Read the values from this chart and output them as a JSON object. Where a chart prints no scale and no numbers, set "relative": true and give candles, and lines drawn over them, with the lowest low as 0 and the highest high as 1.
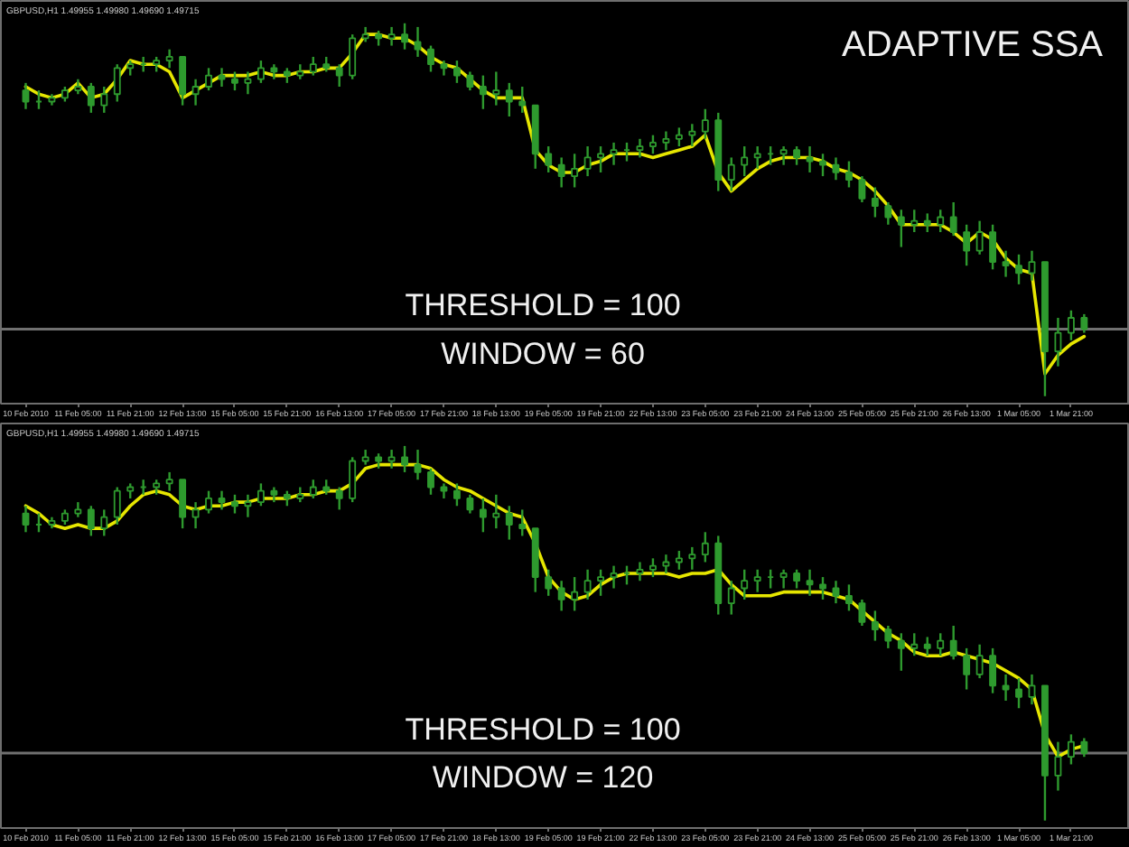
{
  "chart_data": [
    {
      "type": "candlestick",
      "title": "ADAPTIVE SSA",
      "subtitle": "GBPUSD,H1 1.49955 1.49980 1.49690 1.49715",
      "annotations": [
        "THRESHOLD = 100",
        "WINDOW = 60"
      ],
      "relative": true,
      "color": "#2e9a2e",
      "categories": [
        "10 Feb 2010",
        null,
        null,
        null,
        "11 Feb 05:00",
        null,
        null,
        null,
        "11 Feb 21:00",
        null,
        null,
        null,
        "12 Feb 13:00",
        null,
        null,
        null,
        "15 Feb 05:00",
        null,
        null,
        null,
        "15 Feb 21:00",
        null,
        null,
        null,
        "16 Feb 13:00",
        null,
        null,
        null,
        "17 Feb 05:00",
        null,
        null,
        null,
        "17 Feb 21:00",
        null,
        null,
        null,
        "18 Feb 13:00",
        null,
        null,
        null,
        "19 Feb 05:00",
        null,
        null,
        null,
        "19 Feb 21:00",
        null,
        null,
        null,
        "22 Feb 13:00",
        null,
        null,
        null,
        "23 Feb 05:00",
        null,
        null,
        null,
        "23 Feb 21:00",
        null,
        null,
        null,
        "24 Feb 13:00",
        null,
        null,
        null,
        "25 Feb 05:00",
        null,
        null,
        null,
        "25 Feb 21:00",
        null,
        null,
        null,
        "26 Feb 13:00",
        null,
        null,
        null,
        "1 Mar 05:00",
        null,
        null,
        null,
        "1 Mar 21:00",
        null
      ],
      "ohlc": [
        [
          0.82,
          0.84,
          0.77,
          0.79
        ],
        [
          0.79,
          0.82,
          0.77,
          0.79
        ],
        [
          0.79,
          0.81,
          0.78,
          0.8
        ],
        [
          0.8,
          0.83,
          0.79,
          0.82
        ],
        [
          0.82,
          0.85,
          0.81,
          0.83
        ],
        [
          0.83,
          0.84,
          0.76,
          0.78
        ],
        [
          0.78,
          0.83,
          0.76,
          0.81
        ],
        [
          0.81,
          0.89,
          0.79,
          0.88
        ],
        [
          0.88,
          0.9,
          0.86,
          0.89
        ],
        [
          0.89,
          0.91,
          0.87,
          0.89
        ],
        [
          0.89,
          0.91,
          0.87,
          0.9
        ],
        [
          0.9,
          0.93,
          0.88,
          0.91
        ],
        [
          0.91,
          0.91,
          0.78,
          0.81
        ],
        [
          0.81,
          0.85,
          0.78,
          0.83
        ],
        [
          0.83,
          0.88,
          0.82,
          0.86
        ],
        [
          0.86,
          0.88,
          0.83,
          0.85
        ],
        [
          0.85,
          0.87,
          0.82,
          0.84
        ],
        [
          0.84,
          0.87,
          0.81,
          0.85
        ],
        [
          0.85,
          0.9,
          0.84,
          0.88
        ],
        [
          0.88,
          0.89,
          0.85,
          0.87
        ],
        [
          0.87,
          0.88,
          0.84,
          0.86
        ],
        [
          0.86,
          0.89,
          0.85,
          0.87
        ],
        [
          0.87,
          0.91,
          0.86,
          0.89
        ],
        [
          0.89,
          0.91,
          0.87,
          0.88
        ],
        [
          0.88,
          0.89,
          0.83,
          0.86
        ],
        [
          0.86,
          0.97,
          0.85,
          0.96
        ],
        [
          0.96,
          0.99,
          0.95,
          0.97
        ],
        [
          0.97,
          0.98,
          0.94,
          0.96
        ],
        [
          0.96,
          0.99,
          0.94,
          0.97
        ],
        [
          0.97,
          1,
          0.93,
          0.95
        ],
        [
          0.95,
          0.99,
          0.91,
          0.93
        ],
        [
          0.93,
          0.94,
          0.87,
          0.89
        ],
        [
          0.89,
          0.9,
          0.86,
          0.88
        ],
        [
          0.88,
          0.9,
          0.84,
          0.86
        ],
        [
          0.86,
          0.87,
          0.82,
          0.83
        ],
        [
          0.83,
          0.86,
          0.77,
          0.81
        ],
        [
          0.81,
          0.87,
          0.78,
          0.82
        ],
        [
          0.82,
          0.84,
          0.75,
          0.79
        ],
        [
          0.79,
          0.83,
          0.76,
          0.78
        ],
        [
          0.78,
          0.78,
          0.61,
          0.65
        ],
        [
          0.65,
          0.67,
          0.6,
          0.62
        ],
        [
          0.62,
          0.64,
          0.56,
          0.59
        ],
        [
          0.59,
          0.65,
          0.56,
          0.61
        ],
        [
          0.61,
          0.67,
          0.59,
          0.64
        ],
        [
          0.64,
          0.67,
          0.6,
          0.65
        ],
        [
          0.65,
          0.68,
          0.62,
          0.66
        ],
        [
          0.66,
          0.68,
          0.63,
          0.66
        ],
        [
          0.66,
          0.69,
          0.64,
          0.67
        ],
        [
          0.67,
          0.7,
          0.65,
          0.68
        ],
        [
          0.68,
          0.71,
          0.66,
          0.69
        ],
        [
          0.69,
          0.72,
          0.67,
          0.7
        ],
        [
          0.7,
          0.73,
          0.67,
          0.71
        ],
        [
          0.71,
          0.77,
          0.69,
          0.74
        ],
        [
          0.74,
          0.76,
          0.55,
          0.58
        ],
        [
          0.58,
          0.64,
          0.55,
          0.62
        ],
        [
          0.62,
          0.67,
          0.59,
          0.64
        ],
        [
          0.64,
          0.67,
          0.61,
          0.65
        ],
        [
          0.65,
          0.67,
          0.62,
          0.65
        ],
        [
          0.65,
          0.67,
          0.62,
          0.66
        ],
        [
          0.66,
          0.67,
          0.62,
          0.64
        ],
        [
          0.64,
          0.67,
          0.6,
          0.63
        ],
        [
          0.63,
          0.65,
          0.59,
          0.62
        ],
        [
          0.62,
          0.64,
          0.58,
          0.6
        ],
        [
          0.6,
          0.63,
          0.56,
          0.58
        ],
        [
          0.58,
          0.59,
          0.52,
          0.53
        ],
        [
          0.53,
          0.56,
          0.48,
          0.51
        ],
        [
          0.51,
          0.52,
          0.46,
          0.48
        ],
        [
          0.48,
          0.5,
          0.4,
          0.46
        ],
        [
          0.46,
          0.5,
          0.44,
          0.47
        ],
        [
          0.47,
          0.49,
          0.44,
          0.46
        ],
        [
          0.46,
          0.5,
          0.44,
          0.48
        ],
        [
          0.48,
          0.52,
          0.43,
          0.44
        ],
        [
          0.44,
          0.46,
          0.35,
          0.39
        ],
        [
          0.39,
          0.47,
          0.38,
          0.44
        ],
        [
          0.44,
          0.46,
          0.34,
          0.36
        ],
        [
          0.36,
          0.39,
          0.32,
          0.35
        ],
        [
          0.35,
          0.38,
          0.3,
          0.33
        ],
        [
          0.33,
          0.39,
          0.31,
          0.36
        ],
        [
          0.36,
          0.36,
          0,
          0.12
        ],
        [
          0.12,
          0.21,
          0.08,
          0.17
        ],
        [
          0.17,
          0.23,
          0.15,
          0.21
        ],
        [
          0.21,
          0.22,
          0.17,
          0.18
        ]
      ],
      "series": [
        {
          "type": "line",
          "color": "#e6e600",
          "values": [
            0.83,
            0.81,
            0.8,
            0.81,
            0.84,
            0.8,
            0.81,
            0.85,
            0.9,
            0.89,
            0.89,
            0.87,
            0.8,
            0.82,
            0.84,
            0.86,
            0.86,
            0.86,
            0.87,
            0.86,
            0.86,
            0.87,
            0.87,
            0.88,
            0.88,
            0.92,
            0.97,
            0.97,
            0.96,
            0.96,
            0.94,
            0.91,
            0.89,
            0.88,
            0.85,
            0.82,
            0.8,
            0.8,
            0.8,
            0.66,
            0.62,
            0.6,
            0.6,
            0.62,
            0.63,
            0.65,
            0.65,
            0.65,
            0.64,
            0.65,
            0.66,
            0.67,
            0.7,
            0.6,
            0.55,
            0.58,
            0.61,
            0.63,
            0.64,
            0.64,
            0.64,
            0.63,
            0.61,
            0.6,
            0.58,
            0.55,
            0.51,
            0.46,
            0.46,
            0.46,
            0.46,
            0.44,
            0.41,
            0.44,
            0.42,
            0.37,
            0.34,
            0.33,
            0.06,
            0.11,
            0.14,
            0.16
          ]
        }
      ],
      "ref_lines": [
        {
          "axis": "y",
          "value": 0.18,
          "color": "#707070"
        }
      ]
    },
    {
      "type": "candlestick",
      "subtitle": "GBPUSD,H1 1.49955 1.49980 1.49690 1.49715",
      "annotations": [
        "THRESHOLD = 100",
        "WINDOW = 120"
      ],
      "relative": true,
      "color": "#2e9a2e",
      "categories": [
        "10 Feb 2010",
        null,
        null,
        null,
        "11 Feb 05:00",
        null,
        null,
        null,
        "11 Feb 21:00",
        null,
        null,
        null,
        "12 Feb 13:00",
        null,
        null,
        null,
        "15 Feb 05:00",
        null,
        null,
        null,
        "15 Feb 21:00",
        null,
        null,
        null,
        "16 Feb 13:00",
        null,
        null,
        null,
        "17 Feb 05:00",
        null,
        null,
        null,
        "17 Feb 21:00",
        null,
        null,
        null,
        "18 Feb 13:00",
        null,
        null,
        null,
        "19 Feb 05:00",
        null,
        null,
        null,
        "19 Feb 21:00",
        null,
        null,
        null,
        "22 Feb 13:00",
        null,
        null,
        null,
        "23 Feb 05:00",
        null,
        null,
        null,
        "23 Feb 21:00",
        null,
        null,
        null,
        "24 Feb 13:00",
        null,
        null,
        null,
        "25 Feb 05:00",
        null,
        null,
        null,
        "25 Feb 21:00",
        null,
        null,
        null,
        "26 Feb 13:00",
        null,
        null,
        null,
        "1 Mar 05:00",
        null,
        null,
        null,
        "1 Mar 21:00",
        null
      ],
      "ohlc": [
        [
          0.82,
          0.84,
          0.77,
          0.79
        ],
        [
          0.79,
          0.82,
          0.77,
          0.79
        ],
        [
          0.79,
          0.81,
          0.78,
          0.8
        ],
        [
          0.8,
          0.83,
          0.79,
          0.82
        ],
        [
          0.82,
          0.85,
          0.81,
          0.83
        ],
        [
          0.83,
          0.84,
          0.76,
          0.78
        ],
        [
          0.78,
          0.83,
          0.76,
          0.81
        ],
        [
          0.81,
          0.89,
          0.79,
          0.88
        ],
        [
          0.88,
          0.9,
          0.86,
          0.89
        ],
        [
          0.89,
          0.91,
          0.87,
          0.89
        ],
        [
          0.89,
          0.91,
          0.87,
          0.9
        ],
        [
          0.9,
          0.93,
          0.88,
          0.91
        ],
        [
          0.91,
          0.91,
          0.78,
          0.81
        ],
        [
          0.81,
          0.85,
          0.78,
          0.83
        ],
        [
          0.83,
          0.88,
          0.82,
          0.86
        ],
        [
          0.86,
          0.88,
          0.83,
          0.85
        ],
        [
          0.85,
          0.87,
          0.82,
          0.84
        ],
        [
          0.84,
          0.87,
          0.81,
          0.85
        ],
        [
          0.85,
          0.9,
          0.84,
          0.88
        ],
        [
          0.88,
          0.89,
          0.85,
          0.87
        ],
        [
          0.87,
          0.88,
          0.84,
          0.86
        ],
        [
          0.86,
          0.89,
          0.85,
          0.87
        ],
        [
          0.87,
          0.91,
          0.86,
          0.89
        ],
        [
          0.89,
          0.91,
          0.87,
          0.88
        ],
        [
          0.88,
          0.89,
          0.83,
          0.86
        ],
        [
          0.86,
          0.97,
          0.85,
          0.96
        ],
        [
          0.96,
          0.99,
          0.95,
          0.97
        ],
        [
          0.97,
          0.98,
          0.94,
          0.96
        ],
        [
          0.96,
          0.99,
          0.94,
          0.97
        ],
        [
          0.97,
          1,
          0.93,
          0.95
        ],
        [
          0.95,
          0.99,
          0.91,
          0.93
        ],
        [
          0.93,
          0.94,
          0.87,
          0.89
        ],
        [
          0.89,
          0.9,
          0.86,
          0.88
        ],
        [
          0.88,
          0.9,
          0.84,
          0.86
        ],
        [
          0.86,
          0.87,
          0.82,
          0.83
        ],
        [
          0.83,
          0.86,
          0.77,
          0.81
        ],
        [
          0.81,
          0.87,
          0.78,
          0.82
        ],
        [
          0.82,
          0.84,
          0.75,
          0.79
        ],
        [
          0.79,
          0.83,
          0.76,
          0.78
        ],
        [
          0.78,
          0.78,
          0.61,
          0.65
        ],
        [
          0.65,
          0.67,
          0.6,
          0.62
        ],
        [
          0.62,
          0.64,
          0.56,
          0.59
        ],
        [
          0.59,
          0.65,
          0.56,
          0.61
        ],
        [
          0.61,
          0.67,
          0.59,
          0.64
        ],
        [
          0.64,
          0.67,
          0.6,
          0.65
        ],
        [
          0.65,
          0.68,
          0.62,
          0.66
        ],
        [
          0.66,
          0.68,
          0.63,
          0.66
        ],
        [
          0.66,
          0.69,
          0.64,
          0.67
        ],
        [
          0.67,
          0.7,
          0.65,
          0.68
        ],
        [
          0.68,
          0.71,
          0.66,
          0.69
        ],
        [
          0.69,
          0.72,
          0.67,
          0.7
        ],
        [
          0.7,
          0.73,
          0.67,
          0.71
        ],
        [
          0.71,
          0.77,
          0.69,
          0.74
        ],
        [
          0.74,
          0.76,
          0.55,
          0.58
        ],
        [
          0.58,
          0.64,
          0.55,
          0.62
        ],
        [
          0.62,
          0.67,
          0.59,
          0.64
        ],
        [
          0.64,
          0.67,
          0.61,
          0.65
        ],
        [
          0.65,
          0.67,
          0.62,
          0.65
        ],
        [
          0.65,
          0.67,
          0.62,
          0.66
        ],
        [
          0.66,
          0.67,
          0.62,
          0.64
        ],
        [
          0.64,
          0.67,
          0.6,
          0.63
        ],
        [
          0.63,
          0.65,
          0.59,
          0.62
        ],
        [
          0.62,
          0.64,
          0.58,
          0.6
        ],
        [
          0.6,
          0.63,
          0.56,
          0.58
        ],
        [
          0.58,
          0.59,
          0.52,
          0.53
        ],
        [
          0.53,
          0.56,
          0.48,
          0.51
        ],
        [
          0.51,
          0.52,
          0.46,
          0.48
        ],
        [
          0.48,
          0.5,
          0.4,
          0.46
        ],
        [
          0.46,
          0.5,
          0.44,
          0.47
        ],
        [
          0.47,
          0.49,
          0.44,
          0.46
        ],
        [
          0.46,
          0.5,
          0.44,
          0.48
        ],
        [
          0.48,
          0.52,
          0.43,
          0.44
        ],
        [
          0.44,
          0.46,
          0.35,
          0.39
        ],
        [
          0.39,
          0.47,
          0.38,
          0.44
        ],
        [
          0.44,
          0.46,
          0.34,
          0.36
        ],
        [
          0.36,
          0.39,
          0.32,
          0.35
        ],
        [
          0.35,
          0.38,
          0.3,
          0.33
        ],
        [
          0.33,
          0.39,
          0.31,
          0.36
        ],
        [
          0.36,
          0.36,
          0,
          0.12
        ],
        [
          0.12,
          0.21,
          0.08,
          0.17
        ],
        [
          0.17,
          0.23,
          0.15,
          0.21
        ],
        [
          0.21,
          0.22,
          0.17,
          0.18
        ]
      ],
      "series": [
        {
          "type": "line",
          "color": "#e6e600",
          "values": [
            0.84,
            0.82,
            0.79,
            0.78,
            0.79,
            0.78,
            0.78,
            0.8,
            0.84,
            0.87,
            0.88,
            0.87,
            0.84,
            0.83,
            0.84,
            0.84,
            0.85,
            0.85,
            0.86,
            0.86,
            0.86,
            0.87,
            0.87,
            0.88,
            0.88,
            0.9,
            0.94,
            0.95,
            0.95,
            0.95,
            0.95,
            0.94,
            0.91,
            0.89,
            0.88,
            0.86,
            0.84,
            0.82,
            0.81,
            0.74,
            0.65,
            0.61,
            0.59,
            0.6,
            0.63,
            0.65,
            0.66,
            0.66,
            0.66,
            0.66,
            0.65,
            0.66,
            0.66,
            0.67,
            0.63,
            0.6,
            0.6,
            0.6,
            0.61,
            0.61,
            0.61,
            0.61,
            0.6,
            0.59,
            0.56,
            0.53,
            0.5,
            0.48,
            0.45,
            0.44,
            0.44,
            0.45,
            0.44,
            0.43,
            0.42,
            0.4,
            0.38,
            0.35,
            0.23,
            0.17,
            0.19,
            0.2
          ]
        }
      ],
      "ref_lines": [
        {
          "axis": "y",
          "value": 0.18,
          "color": "#707070"
        }
      ]
    }
  ]
}
